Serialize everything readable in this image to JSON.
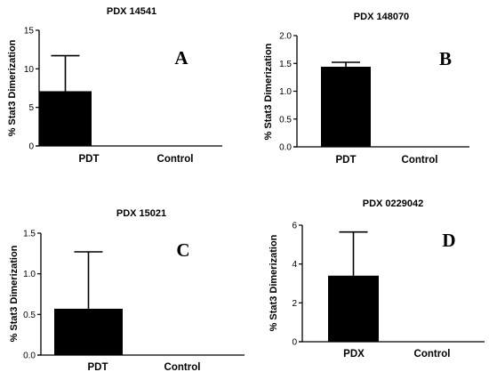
{
  "chart_data": [
    {
      "type": "bar",
      "title": "PDX 14541",
      "ylabel": "% Stat3 Dimerization",
      "panel_letter": "A",
      "categories": [
        "PDT",
        "Control"
      ],
      "values": [
        7.1,
        0
      ],
      "error_upper": [
        11.7,
        null
      ],
      "ylim": [
        0,
        15
      ],
      "yticks": [
        "0",
        "5",
        "10",
        "15"
      ],
      "ytick_values": [
        0,
        5,
        10,
        15
      ]
    },
    {
      "type": "bar",
      "title": "PDX 148070",
      "ylabel": "% Stat3 Dimerization",
      "panel_letter": "B",
      "categories": [
        "PDT",
        "Control"
      ],
      "values": [
        1.44,
        0
      ],
      "error_upper": [
        1.52,
        null
      ],
      "ylim": [
        0,
        2.0
      ],
      "yticks": [
        "0.0",
        "0.5",
        "1.0",
        "1.5",
        "2.0"
      ],
      "ytick_values": [
        0,
        0.5,
        1.0,
        1.5,
        2.0
      ]
    },
    {
      "type": "bar",
      "title": "PDX 15021",
      "ylabel": "% Stat3 Dimerization",
      "panel_letter": "C",
      "categories": [
        "PDT",
        "Control"
      ],
      "values": [
        0.57,
        0
      ],
      "error_upper": [
        1.27,
        null
      ],
      "ylim": [
        0,
        1.5
      ],
      "yticks": [
        "0.0",
        "0.5",
        "1.0",
        "1.5"
      ],
      "ytick_values": [
        0,
        0.5,
        1.0,
        1.5
      ]
    },
    {
      "type": "bar",
      "title": "PDX 0229042",
      "ylabel": "% Stat3 Dimerization",
      "panel_letter": "D",
      "categories": [
        "PDX",
        "Control"
      ],
      "values": [
        3.4,
        0
      ],
      "error_upper": [
        5.65,
        null
      ],
      "ylim": [
        0,
        6
      ],
      "yticks": [
        "0",
        "2",
        "4",
        "6"
      ],
      "ytick_values": [
        0,
        2,
        4,
        6
      ]
    }
  ]
}
